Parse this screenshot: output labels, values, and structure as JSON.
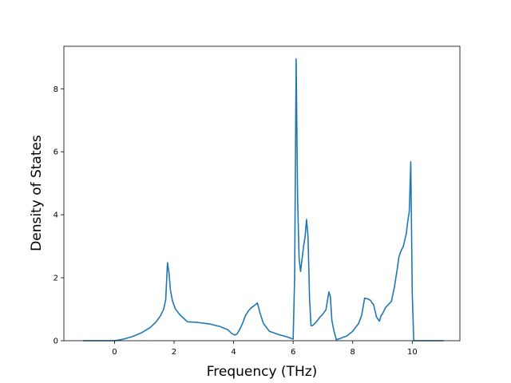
{
  "chart_data": {
    "type": "line",
    "title": "",
    "xlabel": "Frequency (THz)",
    "ylabel": "Density of States",
    "xlim": [
      -1.7,
      11.6
    ],
    "ylim": [
      0,
      9.35
    ],
    "xticks": [
      0,
      2,
      4,
      6,
      8,
      10
    ],
    "yticks": [
      0,
      2,
      4,
      6,
      8
    ],
    "grid": false,
    "series": [
      {
        "color": "#1f77b4",
        "x": [
          -1.05,
          0.0,
          0.3,
          0.6,
          0.9,
          1.2,
          1.4,
          1.55,
          1.65,
          1.72,
          1.78,
          1.83,
          1.88,
          1.95,
          2.05,
          2.2,
          2.45,
          2.8,
          3.2,
          3.55,
          3.8,
          3.95,
          4.05,
          4.12,
          4.2,
          4.3,
          4.4,
          4.5,
          4.6,
          4.7,
          4.8,
          4.88,
          4.95,
          5.0,
          5.2,
          5.5,
          5.8,
          6.0,
          6.05,
          6.1,
          6.15,
          6.2,
          6.25,
          6.3,
          6.35,
          6.4,
          6.45,
          6.5,
          6.55,
          6.6,
          6.65,
          6.7,
          6.8,
          6.9,
          7.0,
          7.1,
          7.2,
          7.25,
          7.3,
          7.35,
          7.4,
          7.45,
          7.55,
          7.65,
          7.8,
          8.0,
          8.2,
          8.3,
          8.4,
          8.5,
          8.6,
          8.65,
          8.7,
          8.8,
          8.9,
          8.95,
          9.0,
          9.05,
          9.1,
          9.2,
          9.3,
          9.4,
          9.5,
          9.55,
          9.6,
          9.7,
          9.8,
          9.85,
          9.9,
          9.95,
          10.0,
          10.05,
          10.1,
          10.5,
          11.05
        ],
        "y": [
          0,
          0,
          0.05,
          0.13,
          0.25,
          0.42,
          0.6,
          0.8,
          1.0,
          1.3,
          2.48,
          2.15,
          1.6,
          1.25,
          1.0,
          0.82,
          0.6,
          0.58,
          0.53,
          0.45,
          0.35,
          0.22,
          0.18,
          0.22,
          0.35,
          0.55,
          0.8,
          0.95,
          1.05,
          1.12,
          1.2,
          0.9,
          0.7,
          0.55,
          0.3,
          0.2,
          0.12,
          0.05,
          2.0,
          8.95,
          4.5,
          2.6,
          2.2,
          2.6,
          3.0,
          3.3,
          3.85,
          3.3,
          1.35,
          0.48,
          0.48,
          0.52,
          0.62,
          0.75,
          0.85,
          0.98,
          1.55,
          1.4,
          0.65,
          0.4,
          0.2,
          0.03,
          0.06,
          0.1,
          0.15,
          0.3,
          0.55,
          0.8,
          1.35,
          1.33,
          1.28,
          1.2,
          1.15,
          0.75,
          0.62,
          0.8,
          0.85,
          0.95,
          1.05,
          1.15,
          1.25,
          1.7,
          2.3,
          2.65,
          2.8,
          3.0,
          3.4,
          3.8,
          4.1,
          5.68,
          1.5,
          0,
          0,
          0,
          0
        ]
      }
    ]
  }
}
